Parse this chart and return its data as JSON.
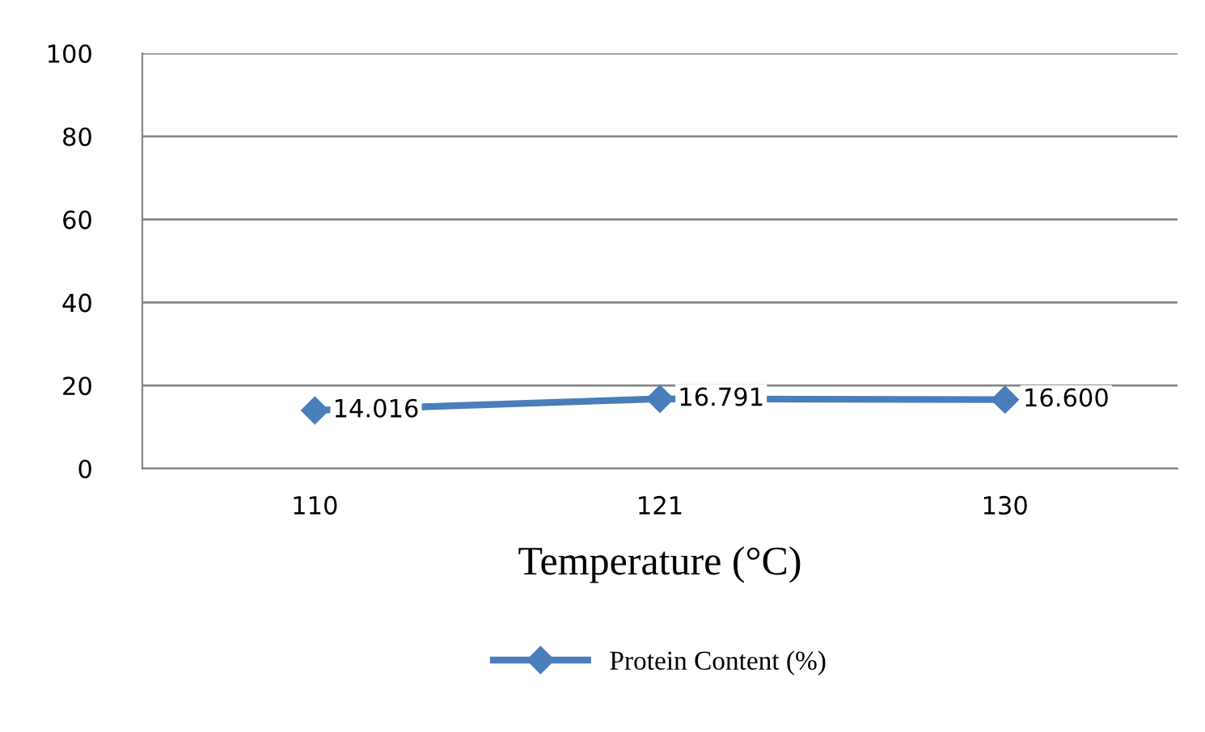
{
  "chart_data": {
    "type": "line",
    "xlabel": "Temperature (°C)",
    "categories": [
      "110",
      "121",
      "130"
    ],
    "series": [
      {
        "name": "Protein Content (%)",
        "color": "#4a7ebb",
        "values": [
          14.016,
          16.791,
          16.6
        ],
        "value_labels": [
          "14.016",
          "16.791",
          "16.600"
        ]
      }
    ],
    "ylim": [
      0,
      100
    ],
    "yticks": [
      0,
      20,
      40,
      60,
      80,
      100
    ],
    "grid": "y",
    "legend": "bottom",
    "marker": "diamond",
    "line_style": "solid"
  }
}
